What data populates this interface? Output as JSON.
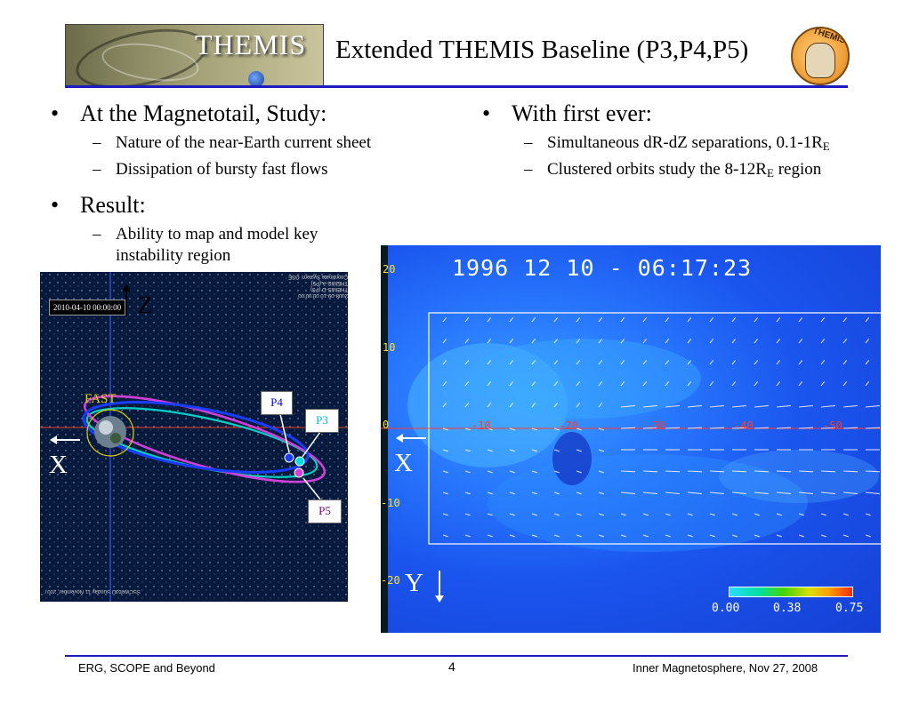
{
  "header": {
    "banner_text": "THEMIS",
    "title": "Extended THEMIS Baseline (P3,P4,P5)",
    "logo_text": "THEMIS"
  },
  "left_column": {
    "bullet1": {
      "text": "At the Magnetotail, Study:",
      "subs": [
        "Nature of the near-Earth current sheet",
        "Dissipation of bursty fast flows"
      ]
    },
    "bullet2": {
      "text": "Result:",
      "subs": [
        "Ability to map and model key",
        "instability region"
      ]
    }
  },
  "right_column": {
    "bullet1": {
      "text": "With first ever:",
      "sub1": {
        "pre": "Simultaneous dR-dZ separations, 0.1-1R",
        "subscript": "E",
        "post": ""
      },
      "sub2": {
        "pre": "Clustered orbits study the 8-12R",
        "subscript": "E",
        "post": " region"
      }
    }
  },
  "orbit_plot": {
    "timestamp": "2010-04-10 00:00:00",
    "z_label": "Z",
    "x_label": "X",
    "fast_label": "FAST",
    "probes": {
      "p4": "P4",
      "p3": "P3",
      "p5": "P5"
    },
    "info_lines": [
      "Coordinate System: GSE",
      "THEMIS-A (P5)",
      "THEMIS-D (P3)",
      "2008-09-10 00:00:00"
    ],
    "credit": "SSCWeb3D  Sunday 11 November, 2007"
  },
  "sim_plot": {
    "timestamp": "1996 12 10 - 06:17:23",
    "x_label": "X",
    "y_label": "Y",
    "y_ticks": [
      "20",
      "10",
      "0",
      "-10",
      "-20"
    ],
    "x_ticks": [
      "-10",
      "-20",
      "-30",
      "-40",
      "-50"
    ],
    "colorbar": [
      "0.00",
      "0.38",
      "0.75"
    ]
  },
  "footer": {
    "left": "ERG, SCOPE and Beyond",
    "page": "4",
    "right": "Inner Magnetosphere, Nov 27, 2008"
  },
  "colors": {
    "rule": "#1c1cc0",
    "p4": "#0000ff",
    "p3": "#00bcd4",
    "p5": "#7a0078",
    "fast": "#e2d300"
  }
}
